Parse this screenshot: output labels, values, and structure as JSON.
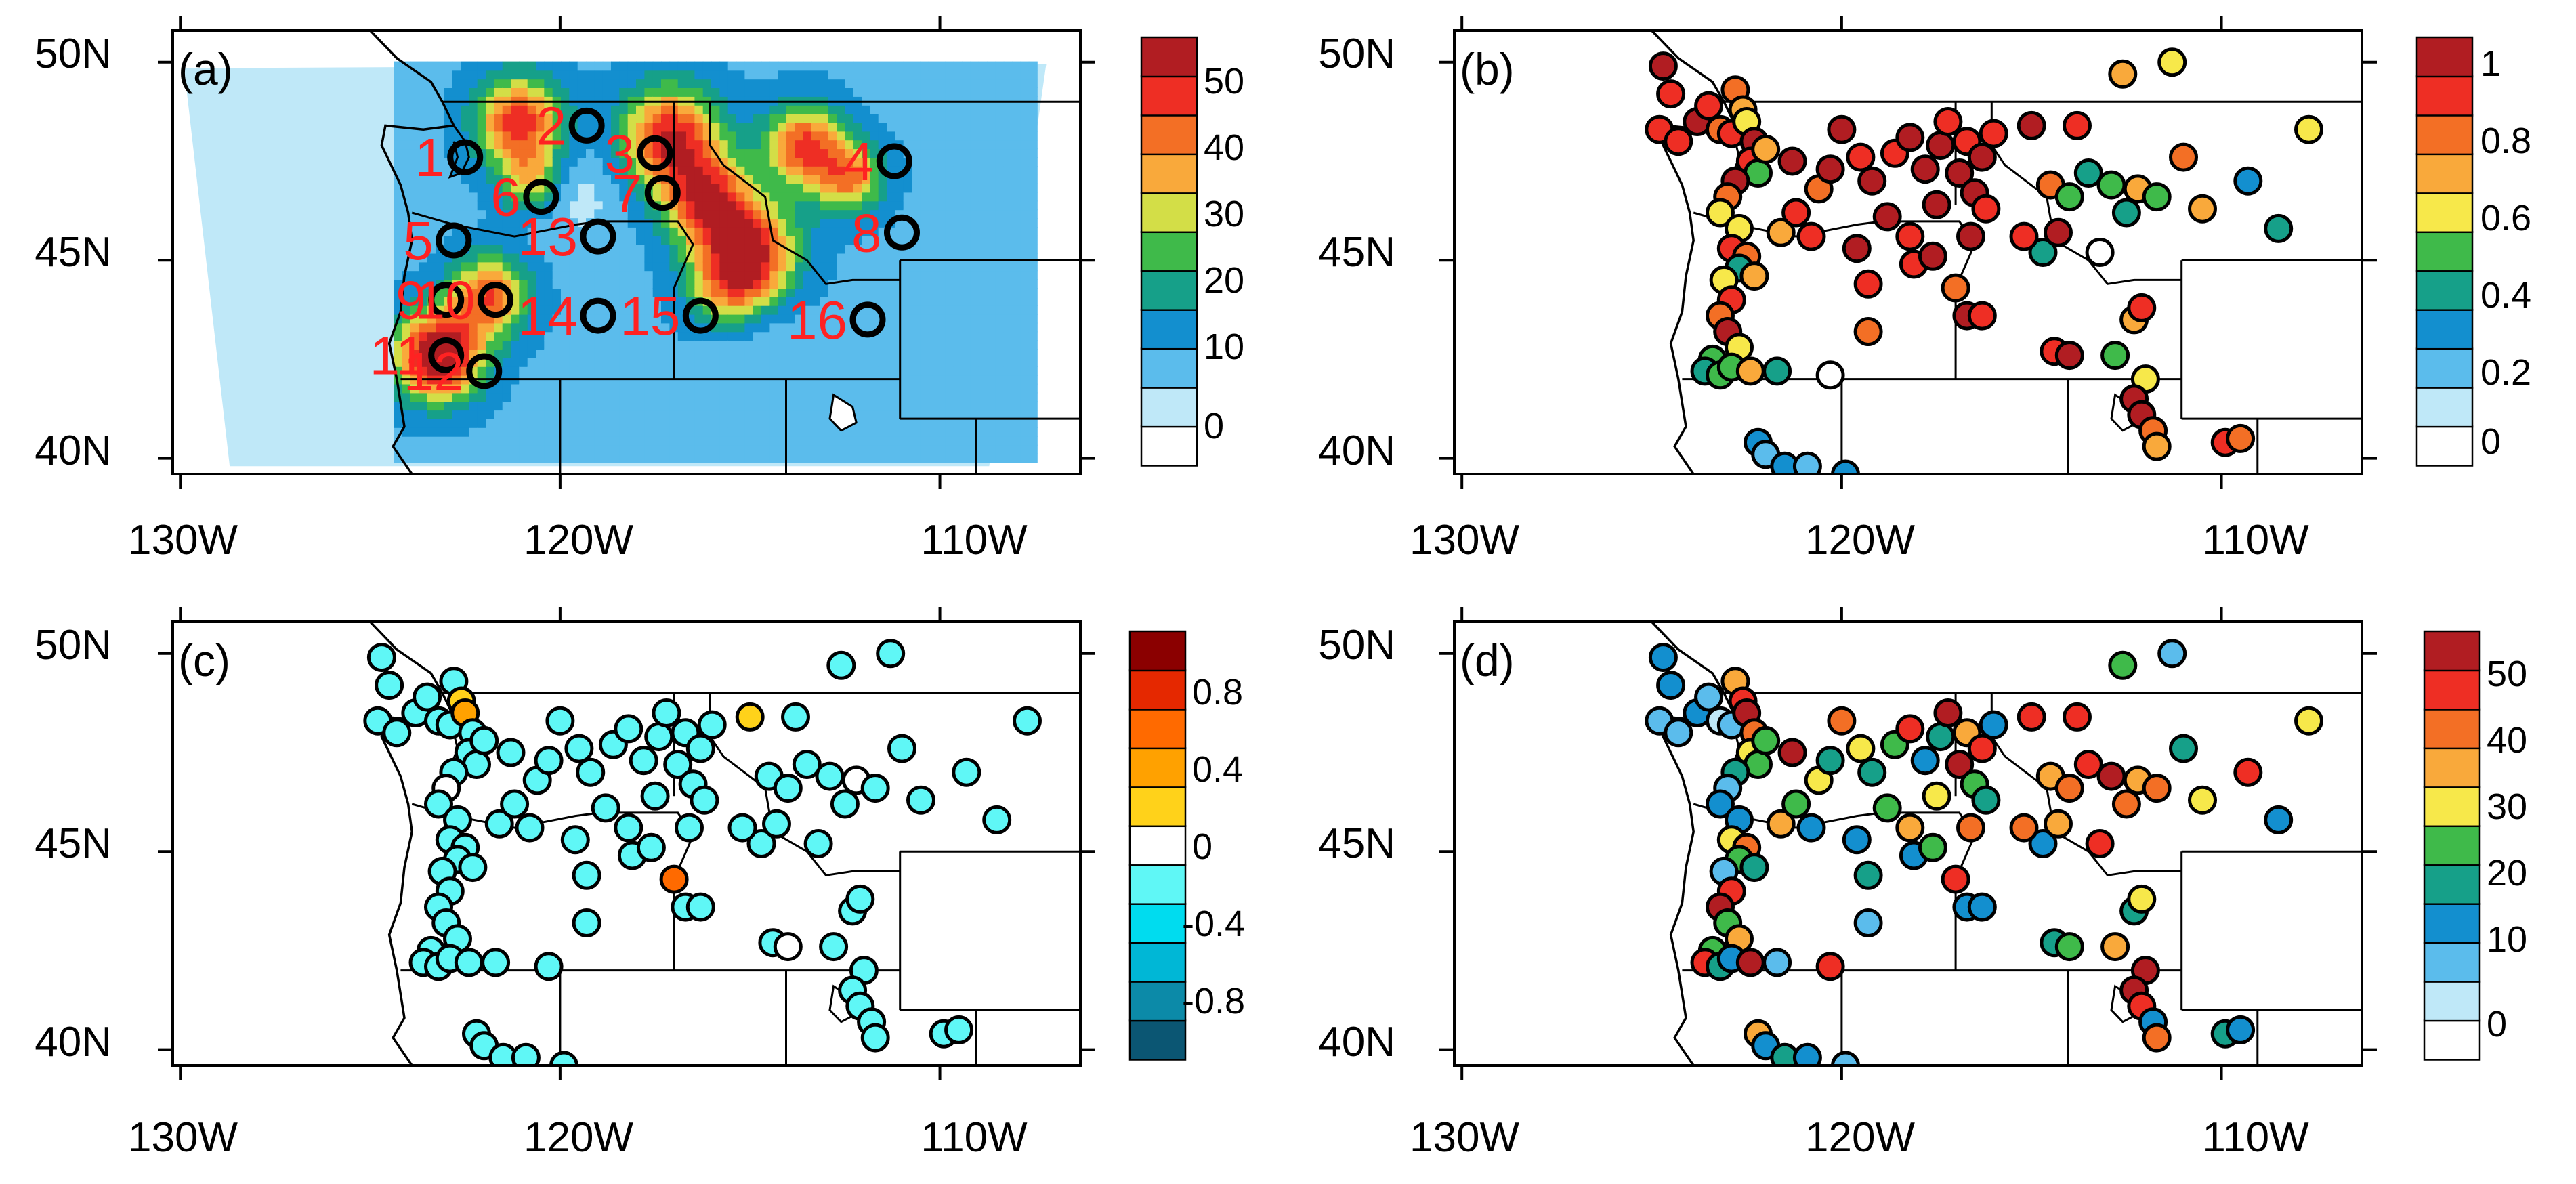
{
  "axis": {
    "lat_labels": [
      "50N",
      "45N",
      "40N"
    ],
    "lon_labels": [
      "130W",
      "120W",
      "110W"
    ]
  },
  "panels": [
    {
      "id": "a",
      "label": "(a)",
      "colorbar": [
        "50",
        "40",
        "30",
        "20",
        "10",
        "0"
      ],
      "colors": [
        "#ffffff",
        "#bfe8f8",
        "#5bbcec",
        "#138fcf",
        "#16a089",
        "#3fba4a",
        "#d3de47",
        "#f9a93b",
        "#f36f25",
        "#ee2e24",
        "#b11d22"
      ]
    },
    {
      "id": "b",
      "label": "(b)",
      "colorbar": [
        "1",
        "0.8",
        "0.6",
        "0.4",
        "0.2",
        "0"
      ],
      "colors": [
        "#ffffff",
        "#bfe8f8",
        "#5bbcec",
        "#138fcf",
        "#16a089",
        "#3fba4a",
        "#f7e84a",
        "#f9a93b",
        "#f36f25",
        "#ee2e24",
        "#b11d22"
      ]
    },
    {
      "id": "c",
      "label": "(c)",
      "colorbar": [
        "0.8",
        "0.4",
        "0",
        "-0.4",
        "-0.8"
      ],
      "colors": [
        "#0b5673",
        "#0c8aa8",
        "#00b7d6",
        "#00dcef",
        "#5ff7f6",
        "#ffffff",
        "#ffd21a",
        "#ffa100",
        "#ff6a00",
        "#e52800",
        "#8b0000"
      ]
    },
    {
      "id": "d",
      "label": "(d)",
      "colorbar": [
        "50",
        "40",
        "30",
        "20",
        "10",
        "0"
      ],
      "colors": [
        "#ffffff",
        "#bfe8f8",
        "#5bbcec",
        "#138fcf",
        "#16a089",
        "#3fba4a",
        "#f7e84a",
        "#f9a93b",
        "#f36f25",
        "#ee2e24",
        "#b11d22"
      ]
    }
  ],
  "sites": [
    {
      "n": "1",
      "lon": -122.5,
      "lat": 47.6
    },
    {
      "n": "2",
      "lon": -119.3,
      "lat": 48.4
    },
    {
      "n": "3",
      "lon": -117.5,
      "lat": 47.7
    },
    {
      "n": "4",
      "lon": -111.2,
      "lat": 47.5
    },
    {
      "n": "5",
      "lon": -122.8,
      "lat": 45.5
    },
    {
      "n": "6",
      "lon": -120.5,
      "lat": 46.6
    },
    {
      "n": "7",
      "lon": -117.3,
      "lat": 46.7
    },
    {
      "n": "8",
      "lon": -111.0,
      "lat": 45.7
    },
    {
      "n": "9",
      "lon": -123.0,
      "lat": 44.0
    },
    {
      "n": "10",
      "lon": -121.7,
      "lat": 44.0
    },
    {
      "n": "11",
      "lon": -123.0,
      "lat": 42.6
    },
    {
      "n": "12",
      "lon": -122.0,
      "lat": 42.2
    },
    {
      "n": "13",
      "lon": -119.0,
      "lat": 45.6
    },
    {
      "n": "14",
      "lon": -119.0,
      "lat": 43.6
    },
    {
      "n": "15",
      "lon": -116.3,
      "lat": 43.6
    },
    {
      "n": "16",
      "lon": -111.9,
      "lat": 43.5
    }
  ],
  "stations": [
    [
      -124.7,
      49.9,
      0.9,
      -0.5,
      10
    ],
    [
      -124.5,
      49.2,
      0.85,
      -0.5,
      10
    ],
    [
      -124.8,
      48.3,
      0.8,
      -0.5,
      8
    ],
    [
      -124.3,
      48.0,
      0.8,
      -0.5,
      5
    ],
    [
      -123.8,
      48.5,
      0.95,
      -0.5,
      12
    ],
    [
      -123.5,
      48.9,
      0.8,
      -0.5,
      5
    ],
    [
      -123.2,
      48.3,
      0.7,
      -0.5,
      2
    ],
    [
      -122.9,
      48.2,
      0.8,
      -0.5,
      8
    ],
    [
      -122.8,
      49.3,
      0.75,
      -0.5,
      30
    ],
    [
      -122.6,
      48.8,
      0.6,
      0.3,
      40
    ],
    [
      -122.5,
      48.5,
      0.55,
      0.5,
      45
    ],
    [
      -122.3,
      48.0,
      0.9,
      -0.2,
      35
    ],
    [
      -122.4,
      47.5,
      0.8,
      -0.5,
      25
    ],
    [
      -122.2,
      47.2,
      0.4,
      -0.5,
      20
    ],
    [
      -122.0,
      47.8,
      0.6,
      -0.5,
      20
    ],
    [
      -122.8,
      47.0,
      0.9,
      -0.5,
      15
    ],
    [
      -123.0,
      46.6,
      0.7,
      0.0,
      6
    ],
    [
      -123.2,
      46.2,
      0.5,
      -0.5,
      12
    ],
    [
      -122.7,
      45.8,
      0.55,
      -0.5,
      10
    ],
    [
      -122.9,
      45.3,
      0.8,
      -0.5,
      25
    ],
    [
      -122.5,
      45.1,
      0.7,
      -0.5,
      35
    ],
    [
      -122.7,
      44.8,
      0.3,
      -0.5,
      20
    ],
    [
      -122.3,
      44.6,
      0.6,
      -0.5,
      15
    ],
    [
      -123.1,
      44.5,
      0.5,
      -0.5,
      8
    ],
    [
      -122.9,
      44.0,
      0.8,
      -0.5,
      40
    ],
    [
      -123.2,
      43.6,
      0.75,
      -0.5,
      45
    ],
    [
      -123.0,
      43.2,
      0.9,
      -0.5,
      20
    ],
    [
      -122.7,
      42.8,
      0.5,
      -0.5,
      30
    ],
    [
      -123.4,
      42.5,
      0.4,
      -0.5,
      20
    ],
    [
      -123.6,
      42.2,
      0.3,
      -0.5,
      40
    ],
    [
      -123.2,
      42.1,
      0.45,
      -0.5,
      15
    ],
    [
      -122.9,
      42.3,
      0.4,
      -0.5,
      10
    ],
    [
      -122.4,
      42.2,
      0.6,
      -0.5,
      45
    ],
    [
      -121.7,
      42.2,
      0.3,
      -0.5,
      8
    ],
    [
      -120.3,
      42.1,
      0.0,
      -0.5,
      40
    ],
    [
      -122.2,
      40.4,
      0.2,
      -0.5,
      30
    ],
    [
      -122.0,
      40.1,
      0.15,
      -0.5,
      10
    ],
    [
      -121.5,
      39.8,
      0.2,
      -0.5,
      15
    ],
    [
      -120.9,
      39.8,
      0.1,
      -0.5,
      10
    ],
    [
      -119.9,
      39.6,
      0.2,
      -0.5,
      5
    ],
    [
      -121.6,
      45.7,
      0.6,
      -0.5,
      30
    ],
    [
      -120.8,
      45.6,
      0.8,
      -0.5,
      12
    ],
    [
      -121.2,
      46.2,
      0.85,
      -0.5,
      20
    ],
    [
      -120.6,
      46.8,
      0.7,
      -0.5,
      25
    ],
    [
      -121.3,
      47.5,
      0.9,
      -0.5,
      45
    ],
    [
      -120.3,
      47.3,
      0.95,
      -0.5,
      15
    ],
    [
      -120.0,
      48.3,
      0.9,
      -0.5,
      35
    ],
    [
      -119.5,
      47.6,
      0.85,
      -0.5,
      25
    ],
    [
      -119.2,
      47.0,
      0.9,
      -0.5,
      15
    ],
    [
      -118.6,
      47.7,
      0.85,
      -0.5,
      20
    ],
    [
      -118.2,
      48.1,
      0.9,
      -0.5,
      40
    ],
    [
      -117.8,
      47.3,
      0.95,
      -0.5,
      12
    ],
    [
      -117.5,
      46.4,
      0.9,
      -0.5,
      25
    ],
    [
      -117.4,
      47.9,
      0.9,
      -0.5,
      15
    ],
    [
      -117.2,
      48.5,
      0.85,
      -0.5,
      45
    ],
    [
      -116.7,
      48.0,
      0.8,
      -0.5,
      30
    ],
    [
      -116.9,
      47.2,
      0.9,
      -0.5,
      45
    ],
    [
      -116.5,
      46.7,
      0.95,
      -0.5,
      20
    ],
    [
      -116.3,
      47.6,
      0.9,
      -0.5,
      40
    ],
    [
      -116.0,
      48.2,
      0.8,
      -0.5,
      12
    ],
    [
      -116.2,
      46.3,
      0.85,
      -0.5,
      15
    ],
    [
      -116.6,
      45.6,
      0.9,
      -0.5,
      35
    ],
    [
      -118.8,
      46.1,
      0.9,
      -0.5,
      20
    ],
    [
      -118.2,
      45.6,
      0.85,
      -0.5,
      30
    ],
    [
      -119.6,
      45.3,
      0.9,
      -0.5,
      12
    ],
    [
      -119.3,
      44.4,
      0.8,
      -0.5,
      15
    ],
    [
      -118.1,
      44.9,
      0.85,
      -0.5,
      12
    ],
    [
      -117.6,
      45.1,
      0.9,
      -0.5,
      20
    ],
    [
      -117.0,
      44.3,
      0.7,
      0.6,
      40
    ],
    [
      -116.7,
      43.6,
      0.9,
      -0.5,
      12
    ],
    [
      -116.3,
      43.6,
      0.8,
      -0.5,
      10
    ],
    [
      -119.3,
      43.2,
      0.7,
      -0.5,
      8
    ],
    [
      -115.0,
      48.4,
      0.9,
      0.3,
      40
    ],
    [
      -113.8,
      48.4,
      0.85,
      -0.5,
      40
    ],
    [
      -112.6,
      49.7,
      0.6,
      -0.5,
      20
    ],
    [
      -111.3,
      50.0,
      0.5,
      -0.5,
      8
    ],
    [
      -114.5,
      46.9,
      0.75,
      -0.5,
      30
    ],
    [
      -114.0,
      46.6,
      0.45,
      -0.5,
      35
    ],
    [
      -113.5,
      47.2,
      0.35,
      -0.5,
      40
    ],
    [
      -112.9,
      46.9,
      0.4,
      -0.5,
      50
    ],
    [
      -112.5,
      46.2,
      0.3,
      -0.5,
      38
    ],
    [
      -112.2,
      46.8,
      0.6,
      0.0,
      30
    ],
    [
      -111.7,
      46.6,
      0.45,
      -0.5,
      35
    ],
    [
      -111.0,
      47.6,
      0.7,
      -0.5,
      15
    ],
    [
      -110.5,
      46.3,
      0.6,
      -0.5,
      25
    ],
    [
      -109.3,
      47.0,
      0.2,
      -0.5,
      40
    ],
    [
      -108.5,
      45.8,
      0.3,
      -0.5,
      10
    ],
    [
      -107.7,
      48.3,
      0.5,
      -0.5,
      25
    ],
    [
      -114.7,
      45.2,
      0.3,
      -0.5,
      10
    ],
    [
      -114.4,
      42.7,
      0.8,
      -0.5,
      15
    ],
    [
      -114.0,
      42.6,
      0.9,
      0.0,
      20
    ],
    [
      -112.8,
      42.6,
      0.4,
      -0.5,
      30
    ],
    [
      -112.3,
      43.5,
      0.6,
      -0.5,
      15
    ],
    [
      -112.1,
      43.8,
      0.8,
      -0.5,
      25
    ],
    [
      -112.0,
      42.0,
      0.5,
      -0.5,
      45
    ],
    [
      -112.3,
      41.5,
      0.9,
      -0.5,
      45
    ],
    [
      -112.1,
      41.1,
      0.95,
      -0.5,
      40
    ],
    [
      -111.8,
      40.7,
      0.7,
      -0.5,
      10
    ],
    [
      -111.7,
      40.3,
      0.6,
      -0.5,
      35
    ],
    [
      -109.9,
      40.4,
      0.8,
      -0.5,
      15
    ],
    [
      -109.5,
      40.5,
      0.7,
      -0.5,
      12
    ],
    [
      -113.2,
      45.2,
      0.0,
      -0.5,
      40
    ],
    [
      -114.3,
      45.7,
      0.9,
      -0.5,
      30
    ],
    [
      -115.2,
      45.6,
      0.85,
      -0.5,
      35
    ]
  ]
}
